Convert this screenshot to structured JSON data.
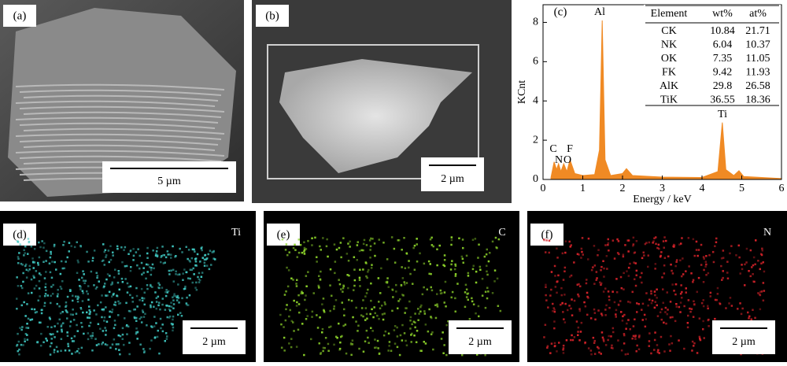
{
  "panels": [
    {
      "label": "(a)",
      "scale": "5 µm"
    },
    {
      "label": "(b)",
      "scale": "2 µm"
    },
    {
      "label": "(c)"
    },
    {
      "label": "(d)",
      "scale": "2 µm",
      "element": "Ti"
    },
    {
      "label": "(e)",
      "scale": "2 µm",
      "element": "C"
    },
    {
      "label": "(f)",
      "scale": "2 µm",
      "element": "N"
    }
  ],
  "chart_data": {
    "type": "area",
    "xlabel": "Energy / keV",
    "ylabel": "KCnt",
    "color": "#f08a24",
    "x": [
      0.2,
      0.28,
      0.34,
      0.39,
      0.45,
      0.52,
      0.6,
      0.68,
      0.8,
      1.0,
      1.3,
      1.42,
      1.49,
      1.56,
      1.7,
      2.0,
      2.1,
      2.25,
      3.0,
      4.0,
      4.4,
      4.51,
      4.6,
      4.8,
      4.93,
      5.05,
      6.0
    ],
    "values": [
      0.1,
      0.9,
      0.5,
      0.8,
      0.4,
      0.8,
      0.4,
      1.0,
      0.3,
      0.2,
      0.25,
      1.5,
      8.1,
      1.0,
      0.2,
      0.3,
      0.55,
      0.2,
      0.12,
      0.1,
      0.4,
      2.9,
      0.5,
      0.2,
      0.45,
      0.15,
      0.05
    ],
    "xlim": [
      0,
      6
    ],
    "ylim": [
      0,
      8.9
    ],
    "xticks": [
      0,
      1,
      2,
      3,
      4,
      5,
      6
    ],
    "yticks": [
      0,
      2,
      4,
      6,
      8
    ],
    "annotations": [
      "C",
      "N",
      "O",
      "F",
      "Al",
      "Ti"
    ]
  },
  "table": {
    "header": [
      "Element",
      "wt%",
      "at%"
    ],
    "rows": [
      [
        "CK",
        "10.84",
        "21.71"
      ],
      [
        "NK",
        "6.04",
        "10.37"
      ],
      [
        "OK",
        "7.35",
        "11.05"
      ],
      [
        "FK",
        "9.42",
        "11.93"
      ],
      [
        "AlK",
        "29.8",
        "26.58"
      ],
      [
        "TiK",
        "36.55",
        "18.36"
      ]
    ]
  }
}
